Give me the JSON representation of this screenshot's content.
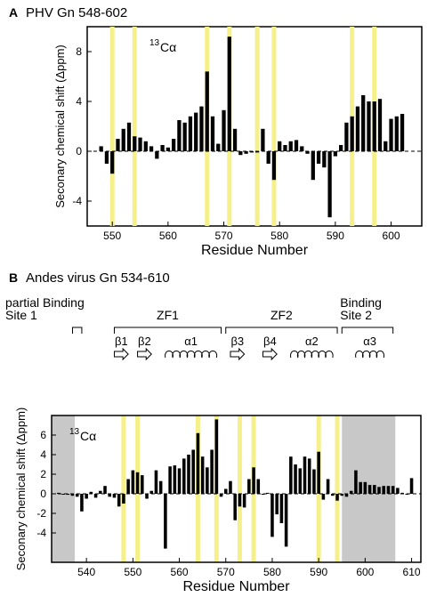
{
  "colors": {
    "highlight": "#f5f08a",
    "shaded": "#c8c8c8",
    "bar": "#000000"
  },
  "chart_data": [
    {
      "panel": "A",
      "type": "bar",
      "title": "PHV Gn 548-602",
      "xlabel": "Residue Number",
      "ylabel": "Seconary chemical shift (Δppm)",
      "annotation": {
        "sup": "13",
        "text": "Cα"
      },
      "xlim": [
        545.5,
        605.5
      ],
      "ylim": [
        -6,
        10
      ],
      "xticks": [
        550,
        560,
        570,
        580,
        590,
        600
      ],
      "yticks": [
        -4,
        0,
        4,
        8
      ],
      "highlights": [
        550,
        554,
        567,
        571,
        576,
        579,
        593,
        597
      ],
      "residues": [
        548,
        549,
        550,
        551,
        552,
        553,
        554,
        555,
        556,
        557,
        558,
        559,
        560,
        561,
        562,
        563,
        564,
        565,
        566,
        567,
        568,
        569,
        570,
        571,
        572,
        573,
        574,
        575,
        576,
        577,
        578,
        579,
        580,
        581,
        582,
        583,
        584,
        585,
        586,
        587,
        588,
        589,
        590,
        591,
        592,
        593,
        594,
        595,
        596,
        597,
        598,
        599,
        600,
        601,
        602
      ],
      "values": [
        0.4,
        -1.0,
        -1.8,
        1.0,
        1.8,
        2.3,
        1.2,
        1.1,
        0.8,
        0.4,
        -0.6,
        0.5,
        0.3,
        1.0,
        2.5,
        2.3,
        2.8,
        3.1,
        3.6,
        6.4,
        2.8,
        0.6,
        3.3,
        9.2,
        1.8,
        -0.3,
        -0.2,
        -0.1,
        -0.1,
        1.8,
        -1.0,
        -2.3,
        0.8,
        0.5,
        0.8,
        0.9,
        0.4,
        -0.2,
        -2.3,
        -1.0,
        -1.3,
        -5.3,
        -0.4,
        0.5,
        2.3,
        2.8,
        3.6,
        4.5,
        4.0,
        4.0,
        4.2,
        0.8,
        2.6,
        2.8,
        3.0
      ]
    },
    {
      "panel": "B",
      "type": "bar",
      "title": "Andes virus Gn 534-610",
      "xlabel": "Residue Number",
      "ylabel": "Seconary chemical shift (Δppm)",
      "annotation": {
        "sup": "13",
        "text": "Cα"
      },
      "xlim": [
        532.5,
        612
      ],
      "ylim": [
        -7,
        8
      ],
      "xticks": [
        540,
        550,
        560,
        570,
        580,
        590,
        600,
        610
      ],
      "yticks": [
        -4,
        -2,
        0,
        2,
        4,
        6
      ],
      "shaded": [
        [
          532.5,
          537.5
        ],
        [
          595,
          606.5
        ]
      ],
      "highlights": [
        548,
        551,
        564,
        568,
        573,
        576,
        590,
        594
      ],
      "residues": [
        534,
        535,
        536,
        537,
        538,
        539,
        540,
        541,
        542,
        543,
        544,
        545,
        546,
        547,
        548,
        549,
        550,
        551,
        552,
        553,
        554,
        555,
        556,
        557,
        558,
        559,
        560,
        561,
        562,
        563,
        564,
        565,
        566,
        567,
        568,
        569,
        570,
        571,
        572,
        573,
        574,
        575,
        576,
        577,
        578,
        579,
        580,
        581,
        582,
        583,
        584,
        585,
        586,
        587,
        588,
        589,
        590,
        591,
        592,
        593,
        594,
        595,
        596,
        597,
        598,
        599,
        600,
        601,
        602,
        603,
        604,
        605,
        606,
        607,
        608,
        609,
        610
      ],
      "values": [
        0.1,
        0.0,
        -0.1,
        -0.2,
        -0.3,
        -1.8,
        -0.5,
        0.2,
        -0.4,
        0.3,
        0.8,
        -0.3,
        -0.4,
        -1.3,
        -1.0,
        1.5,
        2.4,
        2.2,
        1.9,
        -0.5,
        0.3,
        2.4,
        1.3,
        -5.6,
        2.8,
        2.9,
        2.6,
        3.6,
        4.0,
        4.5,
        6.2,
        3.8,
        2.7,
        4.5,
        7.6,
        -0.3,
        0.5,
        1.3,
        -2.7,
        -1.3,
        -1.4,
        1.5,
        2.7,
        1.5,
        0.0,
        0.1,
        -4.4,
        -2.1,
        -3.0,
        -5.4,
        3.8,
        3.0,
        2.6,
        3.8,
        3.6,
        2.5,
        4.3,
        -0.6,
        1.5,
        -0.2,
        -0.7,
        -0.2,
        -0.3,
        0.3,
        2.4,
        1.2,
        1.2,
        0.9,
        0.9,
        0.7,
        0.8,
        0.8,
        0.8,
        0.6,
        0.1,
        0.0,
        1.6
      ]
    }
  ],
  "structure": {
    "regions": [
      {
        "label_lines": [
          "partial Binding",
          "Site 1"
        ],
        "bracket": [
          537,
          539
        ]
      },
      {
        "label_lines": [
          "ZF1"
        ],
        "bracket": [
          546,
          569
        ]
      },
      {
        "label_lines": [
          "ZF2"
        ],
        "bracket": [
          570,
          594
        ]
      },
      {
        "label_lines": [
          "Binding",
          "Site 2"
        ],
        "bracket": [
          595,
          606
        ]
      }
    ],
    "elements": [
      {
        "label": "β1",
        "kind": "strand",
        "range": [
          546,
          549
        ]
      },
      {
        "label": "β2",
        "kind": "strand",
        "range": [
          551,
          554
        ]
      },
      {
        "label": "α1",
        "kind": "helix",
        "range": [
          557,
          568
        ]
      },
      {
        "label": "β3",
        "kind": "strand",
        "range": [
          571,
          574
        ]
      },
      {
        "label": "β4",
        "kind": "strand",
        "range": [
          578,
          581
        ]
      },
      {
        "label": "α2",
        "kind": "helix",
        "range": [
          584,
          593
        ]
      },
      {
        "label": "α3",
        "kind": "helix",
        "range": [
          598,
          604
        ]
      }
    ]
  }
}
